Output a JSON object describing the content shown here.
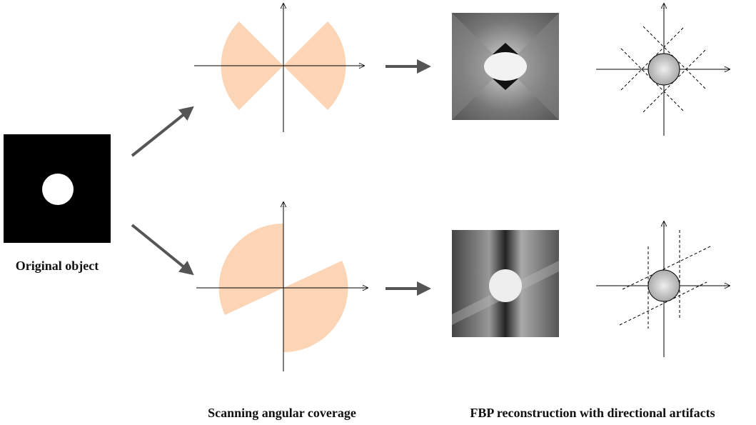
{
  "labels": {
    "original": "Original object",
    "coverage": "Scanning angular coverage",
    "fbp": "FBP reconstruction with directional artifacts"
  }
}
